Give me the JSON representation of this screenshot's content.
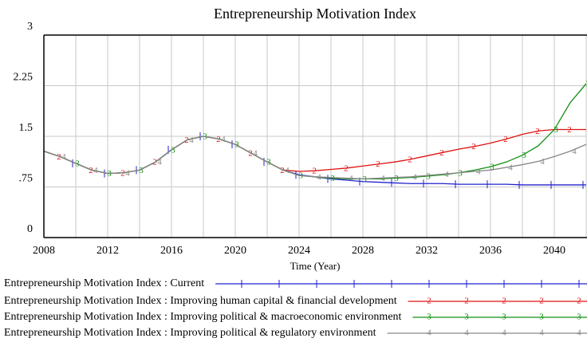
{
  "chart_data": {
    "type": "line",
    "title": "Entrepreneurship Motivation Index",
    "x_label": "Time (Year)",
    "x": [
      2008,
      2009,
      2010,
      2011,
      2012,
      2013,
      2014,
      2015,
      2016,
      2017,
      2018,
      2019,
      2020,
      2021,
      2022,
      2023,
      2024,
      2025,
      2026,
      2027,
      2028,
      2029,
      2030,
      2031,
      2032,
      2033,
      2034,
      2035,
      2036,
      2037,
      2038,
      2039,
      2040,
      2041,
      2042
    ],
    "xlim": [
      2008,
      2042
    ],
    "xticks": [
      2008,
      2012,
      2016,
      2020,
      2024,
      2028,
      2032,
      2036,
      2040
    ],
    "ylim": [
      0,
      3
    ],
    "yticks": [
      0,
      {
        "value": 0.75,
        "label": ".75"
      },
      1.5,
      2.25,
      3
    ],
    "grid": true,
    "legend": "bottom",
    "series": [
      {
        "name": "Entrepreneurship Motivation Index : Current",
        "marker": "1",
        "color": "#2020d0",
        "values": [
          1.28,
          1.2,
          1.1,
          1.0,
          0.95,
          0.96,
          1.0,
          1.12,
          1.3,
          1.45,
          1.5,
          1.46,
          1.38,
          1.25,
          1.12,
          1.0,
          0.93,
          0.9,
          0.87,
          0.85,
          0.83,
          0.82,
          0.81,
          0.8,
          0.8,
          0.8,
          0.79,
          0.79,
          0.79,
          0.79,
          0.78,
          0.78,
          0.78,
          0.78,
          0.78
        ]
      },
      {
        "name": "Entrepreneurship Motivation Index : Improving human capital & financial development",
        "marker": "2",
        "color": "#e01010",
        "values": [
          1.28,
          1.2,
          1.1,
          1.0,
          0.95,
          0.96,
          1.0,
          1.12,
          1.3,
          1.45,
          1.5,
          1.46,
          1.38,
          1.25,
          1.12,
          1.0,
          0.98,
          0.99,
          1.01,
          1.03,
          1.06,
          1.09,
          1.12,
          1.16,
          1.21,
          1.26,
          1.31,
          1.35,
          1.4,
          1.46,
          1.53,
          1.58,
          1.6,
          1.6,
          1.6
        ]
      },
      {
        "name": "Entrepreneurship Motivation Index : Improving political & macroeconomic environment",
        "marker": "3",
        "color": "#109010",
        "values": [
          1.28,
          1.2,
          1.1,
          1.0,
          0.95,
          0.96,
          1.0,
          1.12,
          1.3,
          1.45,
          1.5,
          1.46,
          1.38,
          1.25,
          1.12,
          1.0,
          0.92,
          0.9,
          0.88,
          0.87,
          0.87,
          0.87,
          0.88,
          0.89,
          0.91,
          0.93,
          0.96,
          1.0,
          1.05,
          1.12,
          1.22,
          1.36,
          1.6,
          2.0,
          2.28
        ]
      },
      {
        "name": "Entrepreneurship Motivation Index : Improving political & regulatory environment",
        "marker": "4",
        "color": "#888888",
        "values": [
          1.28,
          1.2,
          1.1,
          1.0,
          0.95,
          0.96,
          1.0,
          1.12,
          1.3,
          1.45,
          1.5,
          1.46,
          1.38,
          1.25,
          1.12,
          1.0,
          0.92,
          0.9,
          0.89,
          0.88,
          0.87,
          0.88,
          0.89,
          0.9,
          0.92,
          0.94,
          0.96,
          0.98,
          1.0,
          1.04,
          1.08,
          1.13,
          1.2,
          1.28,
          1.38
        ]
      }
    ]
  }
}
